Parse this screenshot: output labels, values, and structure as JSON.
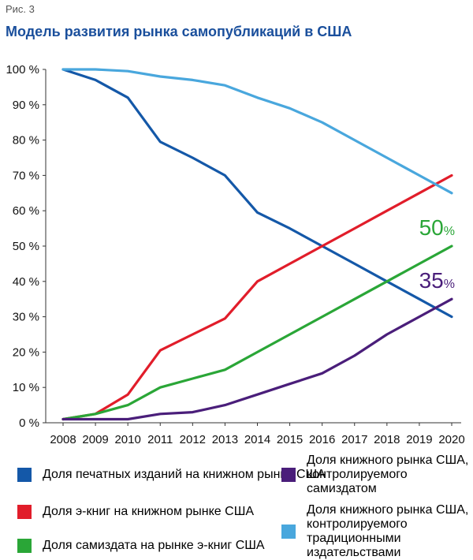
{
  "figure_label": "Рис. 3",
  "chart_data": {
    "type": "line",
    "title": "Модель развития рынка самопубликаций в США",
    "xlabel": "",
    "ylabel": "",
    "x": [
      2008,
      2009,
      2010,
      2011,
      2012,
      2013,
      2014,
      2015,
      2016,
      2017,
      2018,
      2019,
      2020
    ],
    "y_ticks": [
      "0 %",
      "10 %",
      "20 %",
      "30 %",
      "40 %",
      "50 %",
      "60 %",
      "70 %",
      "80 %",
      "90 %",
      "100 %"
    ],
    "ylim": [
      0,
      100
    ],
    "grid": false,
    "legend_position": "bottom",
    "series": [
      {
        "name": "Доля печатных изданий на книжном рынке США",
        "color": "#1458a8",
        "values": [
          100,
          97,
          92,
          79.5,
          75,
          70,
          59.5,
          55,
          50,
          45,
          40,
          35,
          30
        ]
      },
      {
        "name": "Доля э-книг на книжном рынке США",
        "color": "#e11d2a",
        "values": [
          1,
          2.5,
          8,
          20.5,
          25,
          29.5,
          40,
          45,
          50,
          55,
          60,
          65,
          70
        ]
      },
      {
        "name": "Доля самиздата на рынке э-книг США",
        "color": "#2aa637",
        "values": [
          1,
          2.5,
          5,
          10,
          12.5,
          15,
          20,
          25,
          30,
          35,
          40,
          45,
          50
        ]
      },
      {
        "name": "Доля книжного рынка США, контролируемого самиздатом",
        "color": "#4a1e7a",
        "values": [
          1,
          1,
          1,
          2.5,
          3,
          5,
          8,
          11,
          14,
          19,
          25,
          30,
          35
        ]
      },
      {
        "name": "Доля книжного рынка США, контролируемого традиционными издательствами",
        "color": "#49a7dd",
        "values": [
          100,
          100,
          99.5,
          98,
          97,
          95.5,
          92,
          89,
          85,
          80,
          75,
          70,
          65
        ]
      }
    ],
    "annotations": [
      {
        "series": 2,
        "text": "50",
        "unit": "%",
        "color": "#2aa637"
      },
      {
        "series": 3,
        "text": "35",
        "unit": "%",
        "color": "#4a1e7a"
      }
    ]
  },
  "legend": {
    "items": [
      {
        "lines": [
          "Доля печатных изданий на книжном рынке США"
        ],
        "color": "#1458a8"
      },
      {
        "lines": [
          "Доля э-книг на книжном рынке США"
        ],
        "color": "#e11d2a"
      },
      {
        "lines": [
          "Доля самиздата на рынке э-книг США"
        ],
        "color": "#2aa637"
      },
      {
        "lines": [
          "Доля книжного рынка США,",
          "контролируемого",
          "самиздатом"
        ],
        "color": "#4a1e7a"
      },
      {
        "lines": [
          "Доля книжного рынка США,",
          "контролируемого традиционными",
          "издательствами"
        ],
        "color": "#49a7dd"
      }
    ]
  }
}
